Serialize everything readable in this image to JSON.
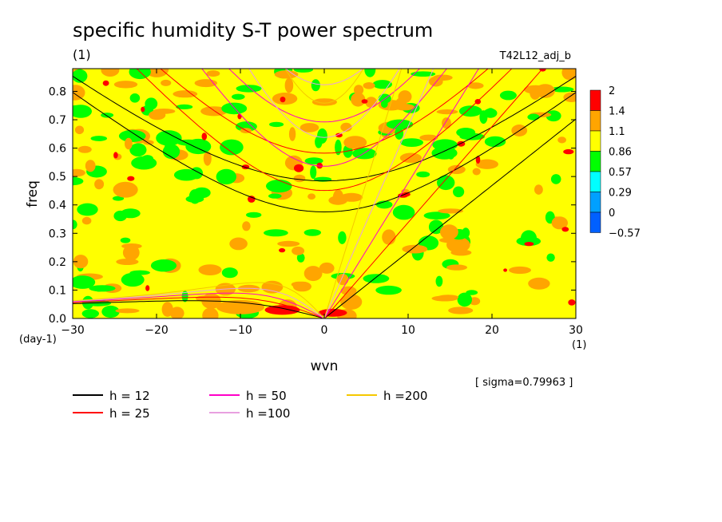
{
  "chart_data": {
    "type": "heatmap",
    "title": "specific humidity S-T power spectrum",
    "subtitle": "(1)",
    "run_label": "T42L12_adj_b",
    "xlabel": "wvn",
    "x_unit": "(1)",
    "ylabel": "freq",
    "y_unit": "(day-1)",
    "xlim": [
      -30,
      30
    ],
    "ylim": [
      0,
      0.88
    ],
    "x_ticks": [
      -30,
      -20,
      -10,
      0,
      10,
      20,
      30
    ],
    "y_ticks": [
      0.0,
      0.1,
      0.2,
      0.3,
      0.4,
      0.5,
      0.6,
      0.7,
      0.8
    ],
    "sigma_label": "[ sigma=0.79963 ]",
    "colorbar": {
      "levels": [
        "2",
        "1.4",
        "1.1",
        "0.86",
        "0.57",
        "0.29",
        "0",
        "-0.57"
      ],
      "colors": [
        "#ff0000",
        "#ffa500",
        "#ffff00",
        "#00ff00",
        "#00ffff",
        "#00a0ff",
        "#0060ff"
      ]
    },
    "background_color": "#ffff00",
    "dispersion_curves": [
      {
        "label": "h = 12",
        "h": 12,
        "color": "#000000"
      },
      {
        "label": "h = 25",
        "h": 25,
        "color": "#ff0000"
      },
      {
        "label": "h = 50",
        "h": 50,
        "color": "#ff00c8"
      },
      {
        "label": "h =100",
        "h": 100,
        "color": "#e8a0e0"
      },
      {
        "label": "h =200",
        "h": 200,
        "color": "#f5c800"
      }
    ],
    "legend_placement": "bottom"
  }
}
